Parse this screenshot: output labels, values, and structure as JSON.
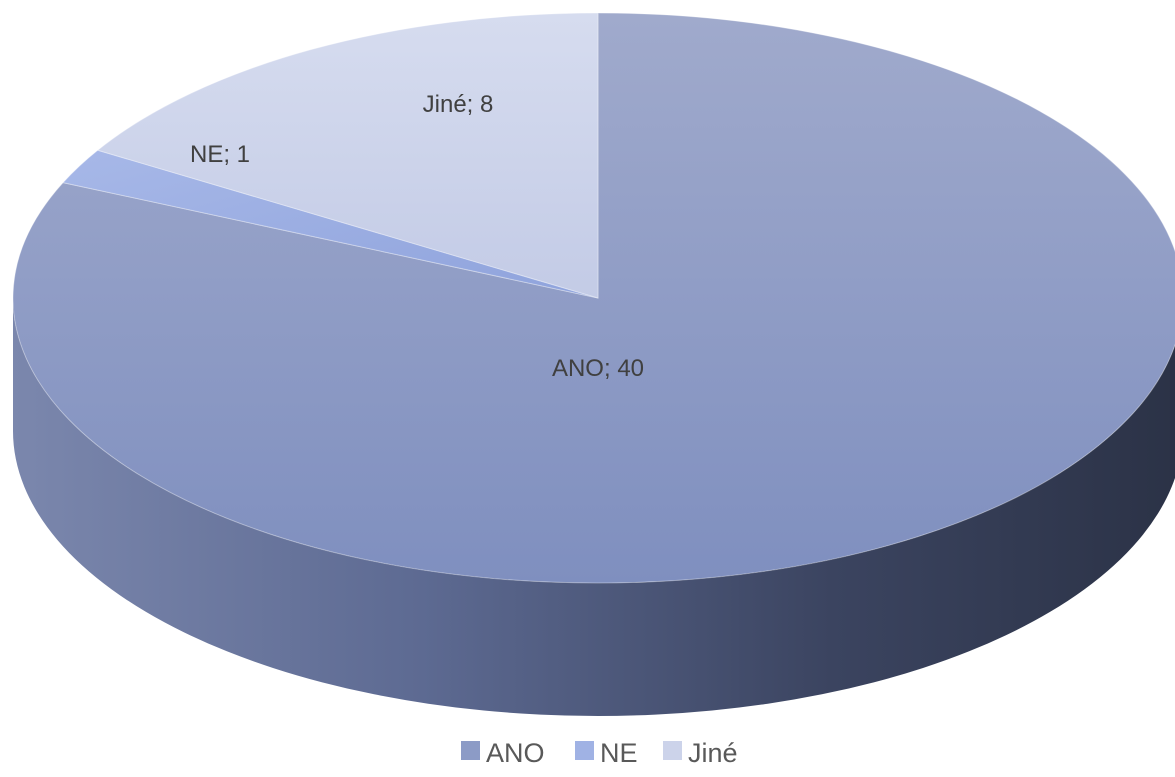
{
  "chart_data": {
    "type": "pie",
    "style": "3d",
    "categories": [
      "ANO",
      "NE",
      "Jiné"
    ],
    "values": [
      40,
      1,
      8
    ],
    "data_labels": [
      "ANO; 40",
      "NE; 1",
      "Jiné; 8"
    ],
    "legend": {
      "position": "bottom",
      "entries": [
        "ANO",
        "NE",
        "Jiné"
      ]
    },
    "colors": [
      "#8c9bc6",
      "#a0b2e4",
      "#ccd3ea"
    ],
    "grid": false
  }
}
